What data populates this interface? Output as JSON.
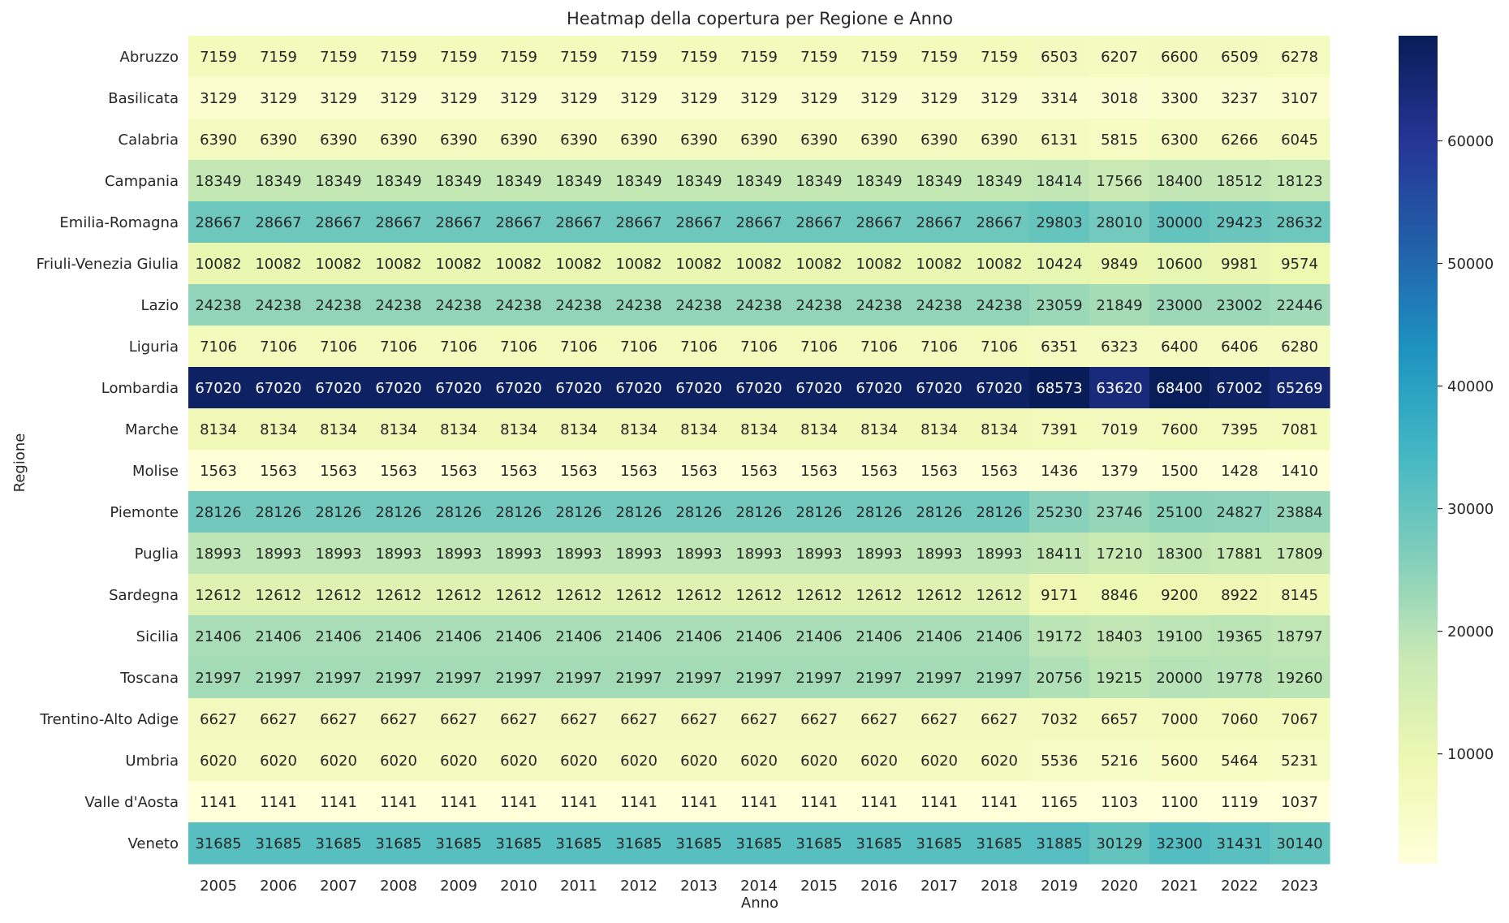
{
  "chart_data": {
    "type": "heatmap",
    "title": "Heatmap della copertura per Regione e Anno",
    "xlabel": "Anno",
    "ylabel": "Regione",
    "x": [
      "2005",
      "2006",
      "2007",
      "2008",
      "2009",
      "2010",
      "2011",
      "2012",
      "2013",
      "2014",
      "2015",
      "2016",
      "2017",
      "2018",
      "2019",
      "2020",
      "2021",
      "2022",
      "2023"
    ],
    "y": [
      "Abruzzo",
      "Basilicata",
      "Calabria",
      "Campania",
      "Emilia-Romagna",
      "Friuli-Venezia Giulia",
      "Lazio",
      "Liguria",
      "Lombardia",
      "Marche",
      "Molise",
      "Piemonte",
      "Puglia",
      "Sardegna",
      "Sicilia",
      "Toscana",
      "Trentino-Alto Adige",
      "Umbria",
      "Valle d'Aosta",
      "Veneto"
    ],
    "values": [
      [
        7159,
        7159,
        7159,
        7159,
        7159,
        7159,
        7159,
        7159,
        7159,
        7159,
        7159,
        7159,
        7159,
        7159,
        6503,
        6207,
        6600,
        6509,
        6278
      ],
      [
        3129,
        3129,
        3129,
        3129,
        3129,
        3129,
        3129,
        3129,
        3129,
        3129,
        3129,
        3129,
        3129,
        3129,
        3314,
        3018,
        3300,
        3237,
        3107
      ],
      [
        6390,
        6390,
        6390,
        6390,
        6390,
        6390,
        6390,
        6390,
        6390,
        6390,
        6390,
        6390,
        6390,
        6390,
        6131,
        5815,
        6300,
        6266,
        6045
      ],
      [
        18349,
        18349,
        18349,
        18349,
        18349,
        18349,
        18349,
        18349,
        18349,
        18349,
        18349,
        18349,
        18349,
        18349,
        18414,
        17566,
        18400,
        18512,
        18123
      ],
      [
        28667,
        28667,
        28667,
        28667,
        28667,
        28667,
        28667,
        28667,
        28667,
        28667,
        28667,
        28667,
        28667,
        28667,
        29803,
        28010,
        30000,
        29423,
        28632
      ],
      [
        10082,
        10082,
        10082,
        10082,
        10082,
        10082,
        10082,
        10082,
        10082,
        10082,
        10082,
        10082,
        10082,
        10082,
        10424,
        9849,
        10600,
        9981,
        9574
      ],
      [
        24238,
        24238,
        24238,
        24238,
        24238,
        24238,
        24238,
        24238,
        24238,
        24238,
        24238,
        24238,
        24238,
        24238,
        23059,
        21849,
        23000,
        23002,
        22446
      ],
      [
        7106,
        7106,
        7106,
        7106,
        7106,
        7106,
        7106,
        7106,
        7106,
        7106,
        7106,
        7106,
        7106,
        7106,
        6351,
        6323,
        6400,
        6406,
        6280
      ],
      [
        67020,
        67020,
        67020,
        67020,
        67020,
        67020,
        67020,
        67020,
        67020,
        67020,
        67020,
        67020,
        67020,
        67020,
        68573,
        63620,
        68400,
        67002,
        65269
      ],
      [
        8134,
        8134,
        8134,
        8134,
        8134,
        8134,
        8134,
        8134,
        8134,
        8134,
        8134,
        8134,
        8134,
        8134,
        7391,
        7019,
        7600,
        7395,
        7081
      ],
      [
        1563,
        1563,
        1563,
        1563,
        1563,
        1563,
        1563,
        1563,
        1563,
        1563,
        1563,
        1563,
        1563,
        1563,
        1436,
        1379,
        1500,
        1428,
        1410
      ],
      [
        28126,
        28126,
        28126,
        28126,
        28126,
        28126,
        28126,
        28126,
        28126,
        28126,
        28126,
        28126,
        28126,
        28126,
        25230,
        23746,
        25100,
        24827,
        23884
      ],
      [
        18993,
        18993,
        18993,
        18993,
        18993,
        18993,
        18993,
        18993,
        18993,
        18993,
        18993,
        18993,
        18993,
        18993,
        18411,
        17210,
        18300,
        17881,
        17809
      ],
      [
        12612,
        12612,
        12612,
        12612,
        12612,
        12612,
        12612,
        12612,
        12612,
        12612,
        12612,
        12612,
        12612,
        12612,
        9171,
        8846,
        9200,
        8922,
        8145
      ],
      [
        21406,
        21406,
        21406,
        21406,
        21406,
        21406,
        21406,
        21406,
        21406,
        21406,
        21406,
        21406,
        21406,
        21406,
        19172,
        18403,
        19100,
        19365,
        18797
      ],
      [
        21997,
        21997,
        21997,
        21997,
        21997,
        21997,
        21997,
        21997,
        21997,
        21997,
        21997,
        21997,
        21997,
        21997,
        20756,
        19215,
        20000,
        19778,
        19260
      ],
      [
        6627,
        6627,
        6627,
        6627,
        6627,
        6627,
        6627,
        6627,
        6627,
        6627,
        6627,
        6627,
        6627,
        6627,
        7032,
        6657,
        7000,
        7060,
        7067
      ],
      [
        6020,
        6020,
        6020,
        6020,
        6020,
        6020,
        6020,
        6020,
        6020,
        6020,
        6020,
        6020,
        6020,
        6020,
        5536,
        5216,
        5600,
        5464,
        5231
      ],
      [
        1141,
        1141,
        1141,
        1141,
        1141,
        1141,
        1141,
        1141,
        1141,
        1141,
        1141,
        1141,
        1141,
        1141,
        1165,
        1103,
        1100,
        1119,
        1037
      ],
      [
        31685,
        31685,
        31685,
        31685,
        31685,
        31685,
        31685,
        31685,
        31685,
        31685,
        31685,
        31685,
        31685,
        31685,
        31885,
        30129,
        32300,
        31431,
        30140
      ]
    ],
    "colormap": "YlGnBu",
    "colorbar": {
      "min": 1037,
      "max": 68573,
      "ticks": [
        10000,
        20000,
        30000,
        40000,
        50000,
        60000
      ]
    },
    "annotated": true,
    "grid": false,
    "legend": "colorbar-right"
  }
}
